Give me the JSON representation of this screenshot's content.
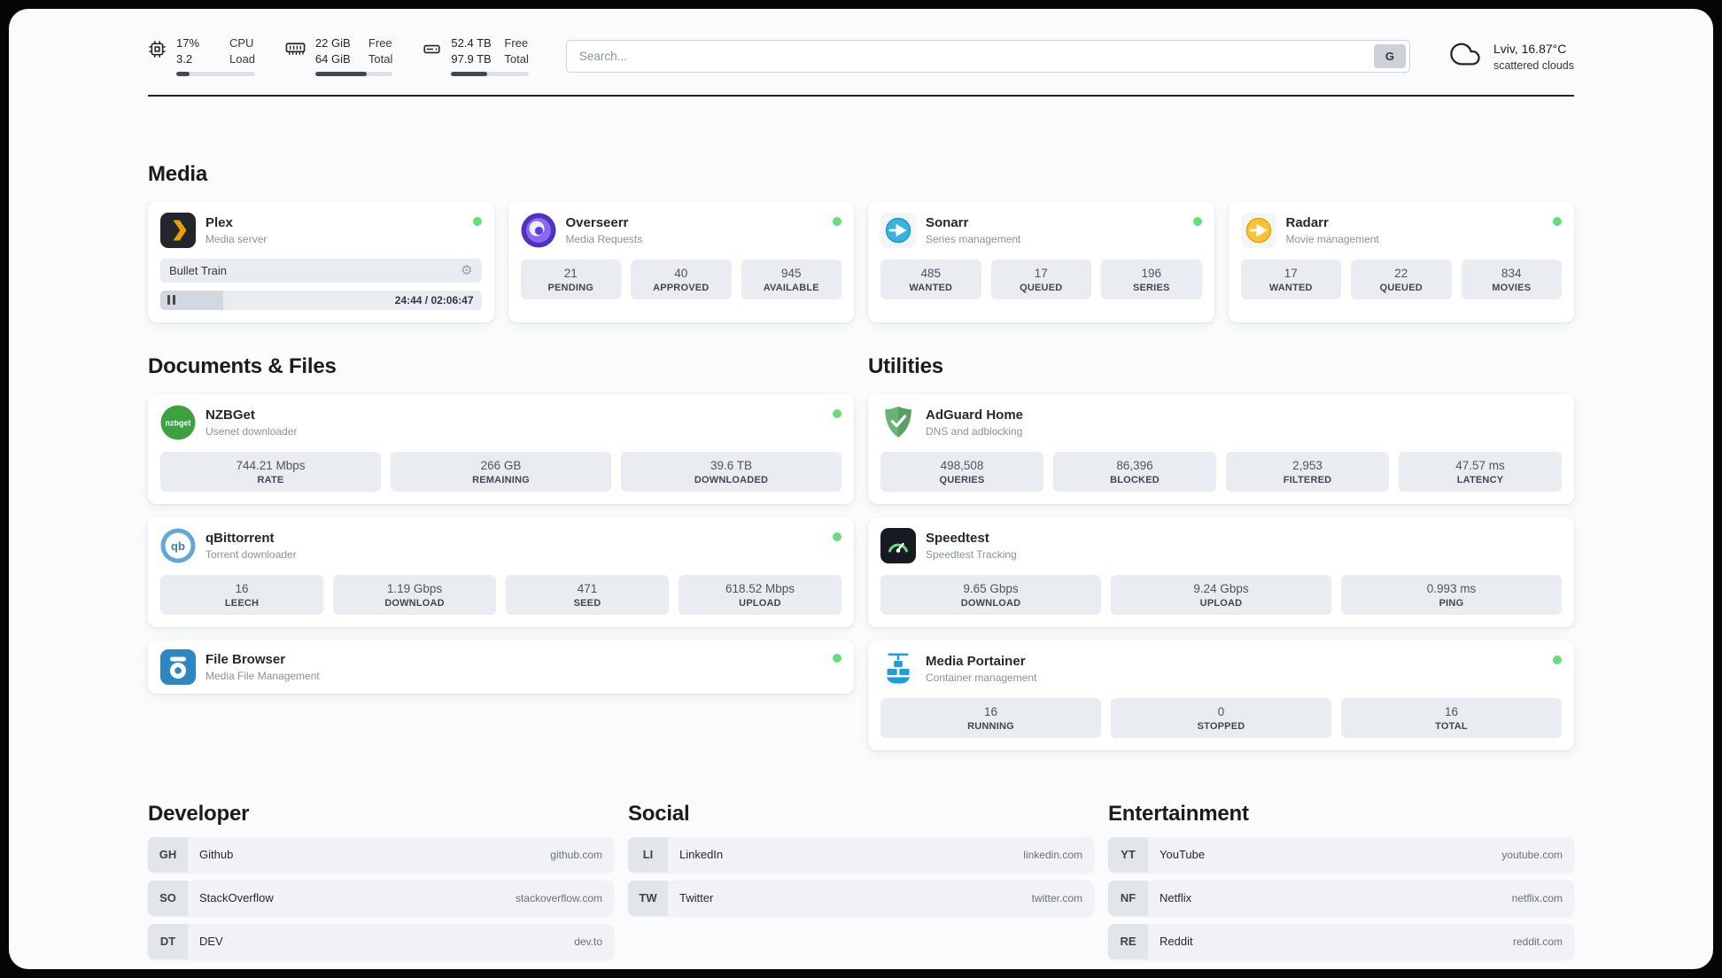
{
  "colors": {
    "status_online": "#69db7c",
    "accent_dark": "#212529",
    "stat_box_bg": "#e9edf2"
  },
  "icons": {
    "gear": "⚙"
  },
  "header": {
    "cpu": {
      "value_top": "17%",
      "value_bottom": "3.2",
      "label_top": "CPU",
      "label_bottom": "Load",
      "progress": 17
    },
    "ram": {
      "value_top": "22 GiB",
      "value_bottom": "64 GiB",
      "label_top": "Free",
      "label_bottom": "Total",
      "progress": 66
    },
    "disk": {
      "value_top": "52.4 TB",
      "value_bottom": "97.9 TB",
      "label_top": "Free",
      "label_bottom": "Total",
      "progress": 46
    },
    "search": {
      "placeholder": "Search...",
      "engine_button": "G"
    },
    "weather": {
      "location": "Lviv, 16.87°C",
      "condition": "scattered clouds"
    }
  },
  "media": {
    "heading": "Media",
    "plex": {
      "title": "Plex",
      "subtitle": "Media server",
      "now_playing": "Bullet Train",
      "time": "24:44 / 02:06:47",
      "progress": 19.5
    },
    "overseerr": {
      "title": "Overseerr",
      "subtitle": "Media Requests",
      "stats": [
        {
          "value": "21",
          "label": "PENDING"
        },
        {
          "value": "40",
          "label": "APPROVED"
        },
        {
          "value": "945",
          "label": "AVAILABLE"
        }
      ]
    },
    "sonarr": {
      "title": "Sonarr",
      "subtitle": "Series management",
      "stats": [
        {
          "value": "485",
          "label": "WANTED"
        },
        {
          "value": "17",
          "label": "QUEUED"
        },
        {
          "value": "196",
          "label": "SERIES"
        }
      ]
    },
    "radarr": {
      "title": "Radarr",
      "subtitle": "Movie management",
      "stats": [
        {
          "value": "17",
          "label": "WANTED"
        },
        {
          "value": "22",
          "label": "QUEUED"
        },
        {
          "value": "834",
          "label": "MOVIES"
        }
      ]
    }
  },
  "documents": {
    "heading": "Documents & Files",
    "nzbget": {
      "title": "NZBGet",
      "subtitle": "Usenet downloader",
      "icon_text": "nzbget",
      "stats": [
        {
          "value": "744.21 Mbps",
          "label": "RATE"
        },
        {
          "value": "266 GB",
          "label": "REMAINING"
        },
        {
          "value": "39.6 TB",
          "label": "DOWNLOADED"
        }
      ]
    },
    "qbittorrent": {
      "title": "qBittorrent",
      "subtitle": "Torrent downloader",
      "icon_text": "qb",
      "stats": [
        {
          "value": "16",
          "label": "LEECH"
        },
        {
          "value": "1.19 Gbps",
          "label": "DOWNLOAD"
        },
        {
          "value": "471",
          "label": "SEED"
        },
        {
          "value": "618.52 Mbps",
          "label": "UPLOAD"
        }
      ]
    },
    "filebrowser": {
      "title": "File Browser",
      "subtitle": "Media File Management"
    }
  },
  "utilities": {
    "heading": "Utilities",
    "adguard": {
      "title": "AdGuard Home",
      "subtitle": "DNS and adblocking",
      "stats": [
        {
          "value": "498,508",
          "label": "QUERIES"
        },
        {
          "value": "86,396",
          "label": "BLOCKED"
        },
        {
          "value": "2,953",
          "label": "FILTERED"
        },
        {
          "value": "47.57 ms",
          "label": "LATENCY"
        }
      ]
    },
    "speedtest": {
      "title": "Speedtest",
      "subtitle": "Speedtest Tracking",
      "stats": [
        {
          "value": "9.65 Gbps",
          "label": "DOWNLOAD"
        },
        {
          "value": "9.24 Gbps",
          "label": "UPLOAD"
        },
        {
          "value": "0.993 ms",
          "label": "PING"
        }
      ]
    },
    "portainer": {
      "title": "Media Portainer",
      "subtitle": "Container management",
      "stats": [
        {
          "value": "16",
          "label": "RUNNING"
        },
        {
          "value": "0",
          "label": "STOPPED"
        },
        {
          "value": "16",
          "label": "TOTAL"
        }
      ]
    }
  },
  "bookmarks": {
    "developer": {
      "heading": "Developer",
      "items": [
        {
          "abbr": "GH",
          "name": "Github",
          "url": "github.com"
        },
        {
          "abbr": "SO",
          "name": "StackOverflow",
          "url": "stackoverflow.com"
        },
        {
          "abbr": "DT",
          "name": "DEV",
          "url": "dev.to"
        }
      ]
    },
    "social": {
      "heading": "Social",
      "items": [
        {
          "abbr": "LI",
          "name": "LinkedIn",
          "url": "linkedin.com"
        },
        {
          "abbr": "TW",
          "name": "Twitter",
          "url": "twitter.com"
        }
      ]
    },
    "entertainment": {
      "heading": "Entertainment",
      "items": [
        {
          "abbr": "YT",
          "name": "YouTube",
          "url": "youtube.com"
        },
        {
          "abbr": "NF",
          "name": "Netflix",
          "url": "netflix.com"
        },
        {
          "abbr": "RE",
          "name": "Reddit",
          "url": "reddit.com"
        }
      ]
    }
  }
}
